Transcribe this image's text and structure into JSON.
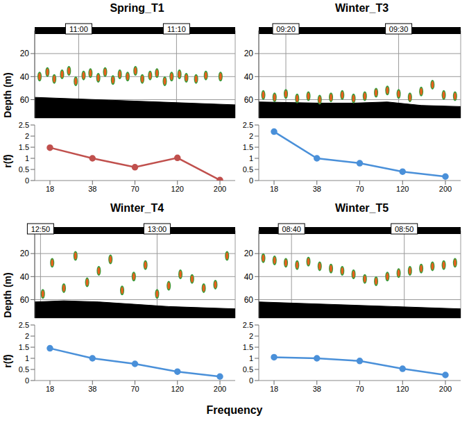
{
  "chart_data": [
    {
      "type": "echogram",
      "title": "Spring_T1",
      "y_label": "Depth (m)",
      "xlim": [
        655.5,
        676
      ],
      "xticks": [
        {
          "value": 660,
          "label": "11:00"
        },
        {
          "value": 670,
          "label": "11:10"
        }
      ],
      "ylim": [
        0,
        76
      ],
      "yticks": [
        20,
        40,
        60
      ],
      "grid": true,
      "color": "#e8601c",
      "seabed": {
        "x": [
          655.5,
          676
        ],
        "depth": [
          58,
          64.5
        ]
      },
      "schools": {
        "x": [
          656,
          656.8,
          657.5,
          658.3,
          659,
          659.7,
          660.5,
          661.2,
          662,
          662.7,
          663.5,
          664.2,
          665,
          665.8,
          666.5,
          667.3,
          668,
          668.8,
          669.5,
          670.3,
          671,
          672,
          673,
          674.5
        ],
        "depth": [
          40,
          36,
          42,
          38,
          35,
          44,
          39,
          37,
          41,
          36,
          43,
          38,
          40,
          35,
          42,
          39,
          37,
          44,
          40,
          38,
          41,
          42,
          39,
          40
        ]
      }
    },
    {
      "type": "line",
      "y_label": "r(f)",
      "categories": [
        "18",
        "38",
        "70",
        "120",
        "200"
      ],
      "values": [
        1.48,
        1.0,
        0.6,
        1.02,
        0.02
      ],
      "color": "#c0504d",
      "marker": "circle",
      "ylim": [
        0,
        2.5
      ],
      "yticks": [
        0,
        0.5,
        1,
        1.5,
        2,
        2.5
      ],
      "grid": false
    },
    {
      "type": "echogram",
      "title": "Winter_T3",
      "xlim": [
        557.6,
        575.5
      ],
      "xticks": [
        {
          "value": 560,
          "label": "09:20"
        },
        {
          "value": 570,
          "label": "09:30"
        }
      ],
      "ylim": [
        0,
        76
      ],
      "yticks": [
        20,
        40,
        60
      ],
      "grid": true,
      "color": "#e8601c",
      "seabed": {
        "x": [
          557.6,
          563,
          566,
          569,
          572,
          575.5
        ],
        "depth": [
          62,
          63,
          63,
          62,
          65,
          66
        ]
      },
      "schools": {
        "x": [
          558,
          559,
          560,
          561,
          562,
          563,
          564,
          565,
          566,
          567,
          568,
          569,
          570,
          571,
          572,
          573,
          574,
          575
        ],
        "depth": [
          56,
          58,
          55,
          59,
          57,
          60,
          58,
          56,
          59,
          57,
          54,
          52,
          55,
          58,
          53,
          47,
          56,
          57
        ]
      }
    },
    {
      "type": "line",
      "categories": [
        "18",
        "38",
        "70",
        "120",
        "200"
      ],
      "values": [
        2.2,
        1.0,
        0.78,
        0.4,
        0.18
      ],
      "color": "#4a90d9",
      "marker": "circle",
      "ylim": [
        0,
        2.5
      ],
      "yticks": [
        0,
        0.5,
        1,
        1.5,
        2,
        2.5
      ],
      "grid": false
    },
    {
      "type": "echogram",
      "title": "Winter_T4",
      "y_label": "Depth (m)",
      "xlim": [
        769.5,
        786.7
      ],
      "xticks": [
        {
          "value": 770,
          "label": "12:50"
        },
        {
          "value": 780,
          "label": "13:00"
        }
      ],
      "ylim": [
        0,
        76
      ],
      "yticks": [
        20,
        40,
        60
      ],
      "grid": true,
      "color": "#e8601c",
      "seabed": {
        "x": [
          769.5,
          772,
          775,
          778,
          781,
          786.7
        ],
        "depth": [
          62,
          61,
          62,
          64,
          66,
          68
        ]
      },
      "schools": {
        "x": [
          770.2,
          771,
          772,
          773,
          774,
          775,
          776,
          777,
          778,
          779,
          780,
          781,
          782,
          783,
          784,
          785,
          786
        ],
        "depth": [
          55,
          28,
          50,
          22,
          45,
          35,
          25,
          52,
          40,
          30,
          55,
          48,
          38,
          42,
          50,
          47,
          22
        ]
      }
    },
    {
      "type": "line",
      "y_label": "r(f)",
      "categories": [
        "18",
        "38",
        "70",
        "120",
        "200"
      ],
      "values": [
        1.45,
        1.0,
        0.75,
        0.4,
        0.18
      ],
      "color": "#4a90d9",
      "marker": "circle",
      "ylim": [
        0,
        2.5
      ],
      "yticks": [
        0,
        0.5,
        1,
        1.5,
        2,
        2.5
      ],
      "grid": false
    },
    {
      "type": "echogram",
      "title": "Winter_T5",
      "xlim": [
        517.1,
        535
      ],
      "xticks": [
        {
          "value": 520,
          "label": "08:40"
        },
        {
          "value": 530,
          "label": "08:50"
        }
      ],
      "ylim": [
        0,
        76
      ],
      "yticks": [
        20,
        40,
        60
      ],
      "grid": true,
      "color": "#e8601c",
      "seabed": {
        "x": [
          517.1,
          535
        ],
        "depth": [
          62,
          68
        ]
      },
      "schools": {
        "x": [
          517.5,
          518.5,
          519.5,
          520.5,
          521.5,
          522.5,
          523.5,
          524.5,
          525.5,
          526.5,
          527.5,
          528.5,
          529.5,
          530.5,
          531.5,
          532.5,
          533.5,
          534.5
        ],
        "depth": [
          24,
          26,
          28,
          30,
          27,
          31,
          33,
          35,
          38,
          42,
          44,
          40,
          37,
          35,
          33,
          31,
          30,
          28
        ]
      }
    },
    {
      "type": "line",
      "categories": [
        "18",
        "38",
        "70",
        "120",
        "200"
      ],
      "values": [
        1.05,
        1.0,
        0.88,
        0.53,
        0.25
      ],
      "color": "#4a90d9",
      "marker": "circle",
      "ylim": [
        0,
        2.5
      ],
      "yticks": [
        0,
        0.5,
        1,
        1.5,
        2,
        2.5
      ],
      "grid": false
    }
  ],
  "xlabel": "Frequency"
}
